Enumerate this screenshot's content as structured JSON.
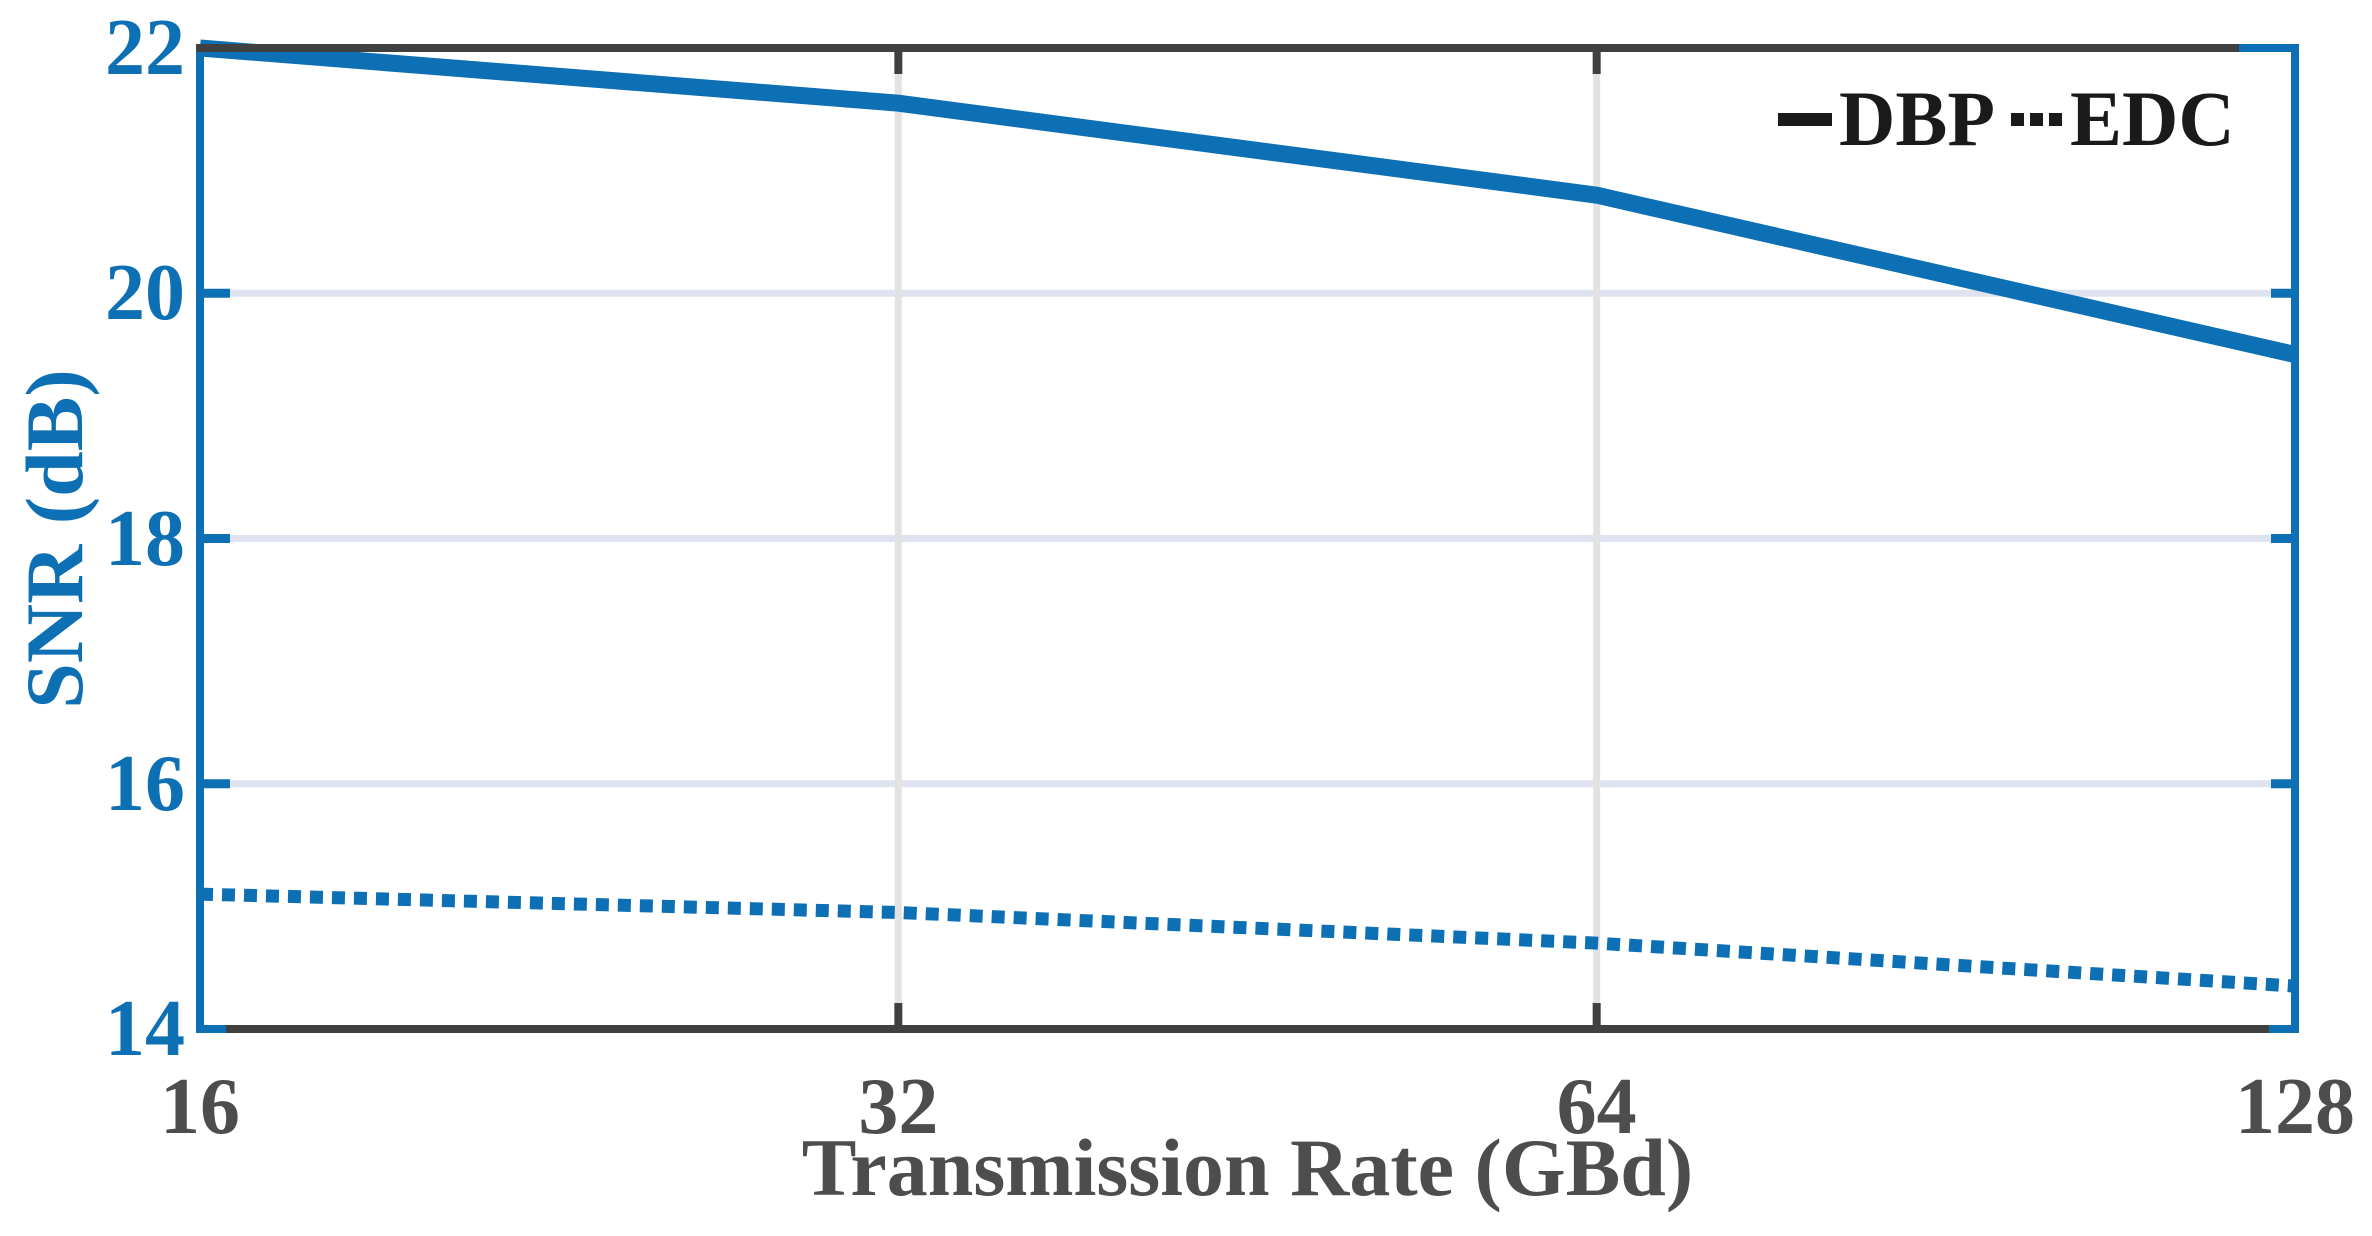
{
  "colors": {
    "background": "#ffffff",
    "axis_blue": "#0e70b4",
    "axis_dark": "#404040",
    "xtick_text": "#4d4d4d",
    "legend_text": "#1a1a1a",
    "grid_horizontal": "#dfe2ef",
    "grid_vertical": "#e2e2e2"
  },
  "chart_data": {
    "type": "line",
    "title": "",
    "xlabel": "Transmission Rate (GBd)",
    "ylabel": "SNR (dB)",
    "x_scale": "log2",
    "xlim": [
      16,
      128
    ],
    "ylim": [
      14,
      22
    ],
    "x": [
      16,
      32,
      64,
      128
    ],
    "xtick_labels": [
      "16",
      "32",
      "64",
      "128"
    ],
    "yticks": [
      14,
      16,
      18,
      20,
      22
    ],
    "ytick_labels": [
      "14",
      "16",
      "18",
      "20",
      "22"
    ],
    "grid": true,
    "series": [
      {
        "name": "DBP",
        "style": "solid",
        "color": "#0e70b4",
        "values": [
          22.0,
          21.55,
          20.8,
          19.5
        ]
      },
      {
        "name": "EDC",
        "style": "dotted",
        "color": "#0e70b4",
        "values": [
          15.1,
          14.95,
          14.7,
          14.35
        ]
      }
    ],
    "legend": {
      "position": "top-right",
      "marker_color": "#1a1a1a",
      "entries": [
        "DBP",
        "EDC"
      ]
    }
  }
}
